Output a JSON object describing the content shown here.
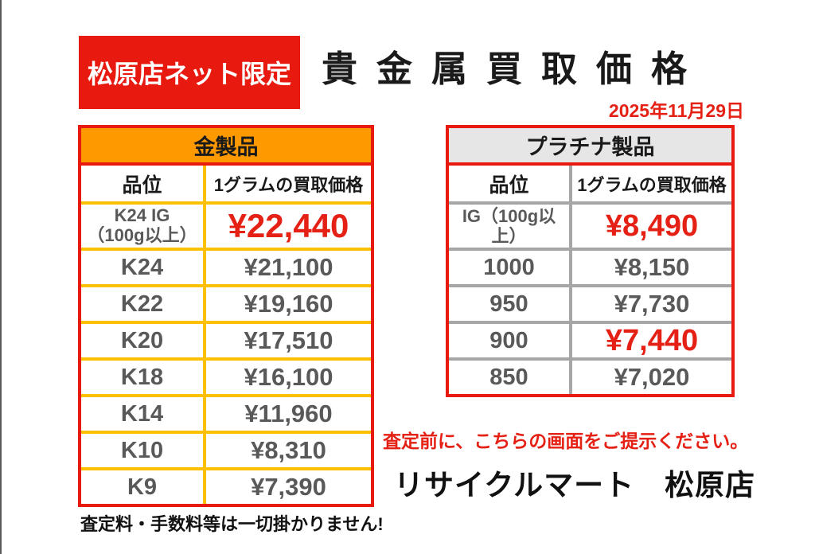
{
  "colors": {
    "accent-red": "#E8190F",
    "price-red": "#E52015",
    "gold-orange": "#FF9900",
    "gold-border": "#FFC000",
    "platinum-header": "#E6E6E6",
    "platinum-border": "#A6A6A6",
    "text-dark": "#1A1A1A",
    "text-gray": "#595959"
  },
  "header": {
    "badge": "松原店ネット限定",
    "title": "貴金属買取価格",
    "date": "2025年11月29日"
  },
  "gold_table": {
    "title": "金製品",
    "columns": [
      "品位",
      "1グラムの買取価格"
    ],
    "rows": [
      {
        "grade": "K24 IG",
        "note": "（100g以上）",
        "price": "¥22,440"
      },
      {
        "grade": "K24",
        "price": "¥21,100"
      },
      {
        "grade": "K22",
        "price": "¥19,160"
      },
      {
        "grade": "K20",
        "price": "¥17,510"
      },
      {
        "grade": "K18",
        "price": "¥16,100"
      },
      {
        "grade": "K14",
        "price": "¥11,960"
      },
      {
        "grade": "K10",
        "price": "¥8,310"
      },
      {
        "grade": "K9",
        "price": "¥7,390"
      }
    ]
  },
  "platinum_table": {
    "title": "プラチナ製品",
    "columns": [
      "品位",
      "1グラムの買取価格"
    ],
    "rows": [
      {
        "grade": "IG（100g以上）",
        "price": "¥8,490"
      },
      {
        "grade": "1000",
        "price": "¥8,150"
      },
      {
        "grade": "950",
        "price": "¥7,730"
      },
      {
        "grade": "900",
        "price": "¥7,440"
      },
      {
        "grade": "850",
        "price": "¥7,020"
      }
    ]
  },
  "footer": {
    "notice": "査定前に、こちらの画面をご提示ください。",
    "store_name": "リサイクルマート　松原店",
    "disclaimer": "査定料・手数料等は一切掛かりません!"
  }
}
